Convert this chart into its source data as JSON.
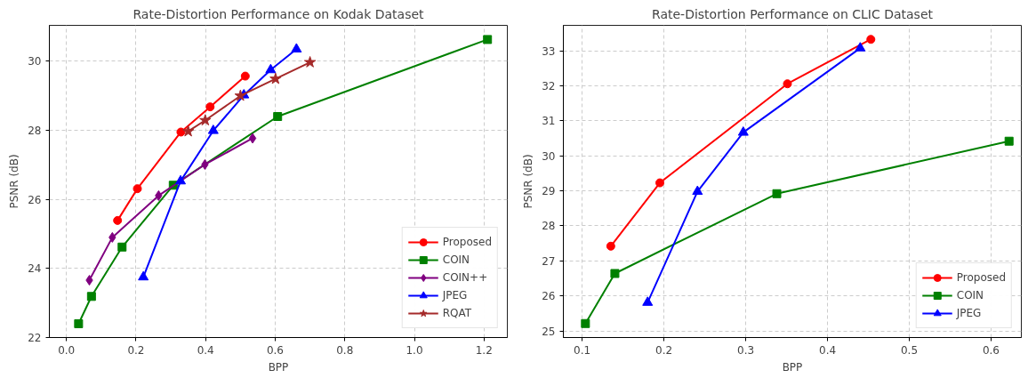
{
  "chart_data": [
    {
      "type": "line",
      "title": "Rate-Distortion Performance on Kodak Dataset",
      "xlabel": "BPP",
      "ylabel": "PSNR (dB)",
      "xlim": [
        -0.049,
        1.267
      ],
      "ylim": [
        22,
        31.04
      ],
      "xticks": [
        {
          "value": 0,
          "label": "0.0"
        },
        0.2,
        0.4,
        0.6,
        0.8,
        {
          "value": 1,
          "label": "1.0"
        },
        1.2
      ],
      "yticks": [
        22,
        24,
        26,
        28,
        30
      ],
      "grid": true,
      "legend": "bottom right",
      "line_style": "solid",
      "series": [
        {
          "name": "Proposed",
          "color": "#ff0000",
          "marker": "circle",
          "x": [
            0.147,
            0.204,
            0.329,
            0.413,
            0.514
          ],
          "values": [
            25.39,
            26.31,
            27.95,
            28.68,
            29.57
          ]
        },
        {
          "name": "COIN",
          "color": "#008000",
          "marker": "square",
          "x": [
            0.035,
            0.072,
            0.16,
            0.307,
            0.607,
            1.21
          ],
          "values": [
            22.4,
            23.19,
            24.62,
            26.41,
            28.4,
            30.63
          ]
        },
        {
          "name": "COIN++",
          "color": "#800080",
          "marker": "diamond",
          "x": [
            0.066,
            0.132,
            0.265,
            0.398,
            0.535
          ],
          "values": [
            23.66,
            24.9,
            26.11,
            27.01,
            27.77
          ]
        },
        {
          "name": "JPEG",
          "color": "#0000ff",
          "marker": "triangle",
          "x": [
            0.221,
            0.328,
            0.422,
            0.51,
            0.587,
            0.661
          ],
          "values": [
            23.75,
            26.53,
            27.99,
            29.02,
            29.75,
            30.35
          ]
        },
        {
          "name": "RQAT",
          "color": "#a52a2a",
          "marker": "star",
          "x": [
            0.35,
            0.399,
            0.5,
            0.601,
            0.7
          ],
          "values": [
            27.97,
            28.29,
            29.0,
            29.49,
            29.97
          ]
        }
      ]
    },
    {
      "type": "line",
      "title": "Rate-Distortion Performance on CLIC Dataset",
      "xlabel": "BPP",
      "ylabel": "PSNR (dB)",
      "xlim": [
        0.077,
        0.637
      ],
      "ylim": [
        24.81,
        33.73
      ],
      "xticks": [
        0.1,
        0.2,
        0.3,
        0.4,
        0.5,
        0.6
      ],
      "yticks": [
        25,
        26,
        27,
        28,
        29,
        30,
        31,
        32,
        33
      ],
      "grid": true,
      "legend": "bottom right",
      "line_style": "solid",
      "series": [
        {
          "name": "Proposed",
          "color": "#ff0000",
          "marker": "circle",
          "x": [
            0.135,
            0.195,
            0.351,
            0.453
          ],
          "values": [
            27.42,
            29.23,
            32.06,
            33.33
          ]
        },
        {
          "name": "COIN",
          "color": "#008000",
          "marker": "square",
          "x": [
            0.104,
            0.14,
            0.338,
            0.622
          ],
          "values": [
            25.21,
            26.64,
            28.92,
            30.42
          ]
        },
        {
          "name": "JPEG",
          "color": "#0000ff",
          "marker": "triangle",
          "x": [
            0.18,
            0.241,
            0.297,
            0.44
          ],
          "values": [
            25.81,
            28.98,
            30.67,
            33.08
          ]
        }
      ]
    }
  ]
}
